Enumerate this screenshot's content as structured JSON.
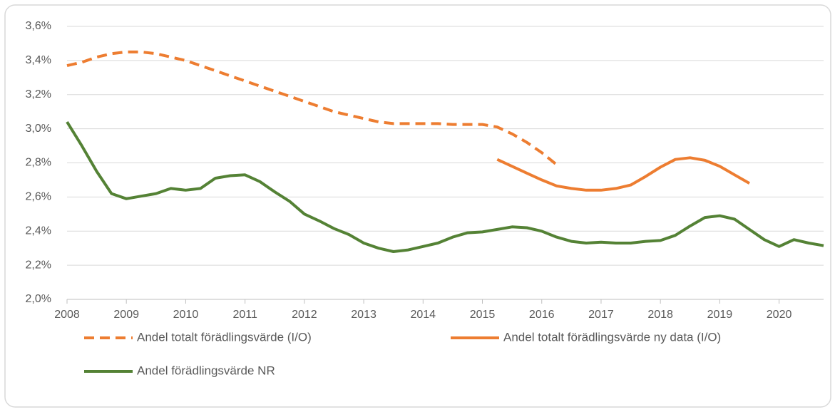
{
  "chart_data": {
    "type": "line",
    "xlim": [
      2008,
      2020.75
    ],
    "xticks": [
      2008,
      2009,
      2010,
      2011,
      2012,
      2013,
      2014,
      2015,
      2016,
      2017,
      2018,
      2019,
      2020
    ],
    "ylim": [
      2.0,
      3.6
    ],
    "yticks": [
      {
        "value": 2.0,
        "label": "2,0%"
      },
      {
        "value": 2.2,
        "label": "2,2%"
      },
      {
        "value": 2.4,
        "label": "2,4%"
      },
      {
        "value": 2.6,
        "label": "2,6%"
      },
      {
        "value": 2.8,
        "label": "2,8%"
      },
      {
        "value": 3.0,
        "label": "3,0%"
      },
      {
        "value": 3.2,
        "label": "3,2%"
      },
      {
        "value": 3.4,
        "label": "3,4%"
      },
      {
        "value": 3.6,
        "label": "3,6%"
      }
    ],
    "grid": true,
    "legend": "bottom",
    "series": [
      {
        "name": "Andel totalt förädlingsvärde (I/O)",
        "color": "#ed7d31",
        "dashed": true,
        "x": [
          2008,
          2008.25,
          2008.5,
          2008.75,
          2009,
          2009.25,
          2009.5,
          2009.75,
          2010,
          2010.25,
          2010.5,
          2010.75,
          2011,
          2011.25,
          2011.5,
          2011.75,
          2012,
          2012.25,
          2012.5,
          2012.75,
          2013,
          2013.25,
          2013.5,
          2013.75,
          2014,
          2014.25,
          2014.5,
          2014.75,
          2015,
          2015.25,
          2015.5,
          2015.75,
          2016,
          2016.25
        ],
        "values": [
          3.37,
          3.39,
          3.42,
          3.44,
          3.45,
          3.45,
          3.44,
          3.42,
          3.4,
          3.37,
          3.34,
          3.31,
          3.28,
          3.25,
          3.22,
          3.19,
          3.16,
          3.13,
          3.1,
          3.08,
          3.06,
          3.04,
          3.03,
          3.03,
          3.03,
          3.03,
          3.025,
          3.025,
          3.025,
          3.01,
          2.97,
          2.92,
          2.86,
          2.79
        ]
      },
      {
        "name": "Andel totalt förädlingsvärde ny data (I/O)",
        "color": "#ed7d31",
        "dashed": false,
        "x": [
          2015.25,
          2015.5,
          2015.75,
          2016,
          2016.25,
          2016.5,
          2016.75,
          2017,
          2017.25,
          2017.5,
          2017.75,
          2018,
          2018.25,
          2018.5,
          2018.75,
          2019,
          2019.25,
          2019.5
        ],
        "values": [
          2.82,
          2.78,
          2.74,
          2.7,
          2.665,
          2.65,
          2.64,
          2.64,
          2.65,
          2.67,
          2.72,
          2.775,
          2.82,
          2.83,
          2.815,
          2.78,
          2.73,
          2.68
        ]
      },
      {
        "name": "Andel förädlingsvärde NR",
        "color": "#548235",
        "dashed": false,
        "x": [
          2008,
          2008.25,
          2008.5,
          2008.75,
          2009,
          2009.25,
          2009.5,
          2009.75,
          2010,
          2010.25,
          2010.5,
          2010.75,
          2011,
          2011.25,
          2011.5,
          2011.75,
          2012,
          2012.25,
          2012.5,
          2012.75,
          2013,
          2013.25,
          2013.5,
          2013.75,
          2014,
          2014.25,
          2014.5,
          2014.75,
          2015,
          2015.25,
          2015.5,
          2015.75,
          2016,
          2016.25,
          2016.5,
          2016.75,
          2017,
          2017.25,
          2017.5,
          2017.75,
          2018,
          2018.25,
          2018.5,
          2018.75,
          2019,
          2019.25,
          2019.5,
          2019.75,
          2020,
          2020.25,
          2020.5,
          2020.75
        ],
        "values": [
          3.04,
          2.9,
          2.75,
          2.62,
          2.59,
          2.605,
          2.62,
          2.65,
          2.64,
          2.65,
          2.71,
          2.725,
          2.73,
          2.69,
          2.63,
          2.575,
          2.5,
          2.46,
          2.415,
          2.38,
          2.33,
          2.3,
          2.28,
          2.29,
          2.31,
          2.33,
          2.365,
          2.39,
          2.395,
          2.41,
          2.425,
          2.42,
          2.4,
          2.365,
          2.34,
          2.33,
          2.335,
          2.33,
          2.33,
          2.34,
          2.345,
          2.375,
          2.43,
          2.48,
          2.49,
          2.47,
          2.41,
          2.35,
          2.31,
          2.35,
          2.33,
          2.315
        ]
      }
    ]
  }
}
